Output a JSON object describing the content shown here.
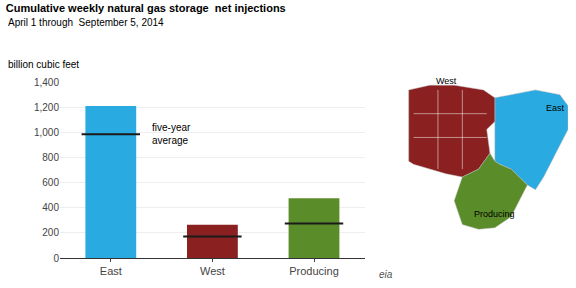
{
  "chart_data": {
    "type": "bar",
    "title": "Cumulative weekly natural gas storage  net injections",
    "subtitle": "April 1 through  September 5, 2014",
    "ylabel": "billion cubic feet",
    "categories": [
      "East",
      "West",
      "Producing"
    ],
    "series": [
      {
        "type": "bar",
        "values": [
          1210,
          265,
          475
        ],
        "colors": [
          "#29ABE2",
          "#8B2020",
          "#5B8C2A"
        ]
      },
      {
        "type": "line",
        "marker": "line",
        "color": "#1a1a1a",
        "values": [
          985,
          172,
          275
        ]
      }
    ],
    "ylim": [
      0,
      1400
    ],
    "yticks": [
      0,
      200,
      400,
      600,
      800,
      {
        "value": 1000,
        "label": "1,000"
      },
      {
        "value": 1200,
        "label": "1,200"
      },
      {
        "value": 1400,
        "label": "1,400"
      }
    ],
    "grid": true,
    "annotations": [
      "five-year\naverage",
      "eia"
    ]
  }
}
